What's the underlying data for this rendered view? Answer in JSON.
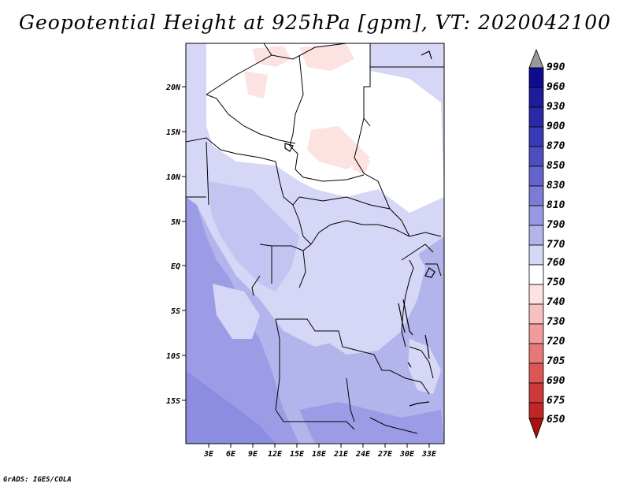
{
  "title": "Geopotential Height at 925hPa [gpm], VT: 2020042100",
  "credit": "GrADS: IGES/COLA",
  "axes": {
    "lat_labels": [
      "20N",
      "15N",
      "10N",
      "5N",
      "EQ",
      "5S",
      "10S",
      "15S"
    ],
    "lon_labels": [
      "3E",
      "6E",
      "9E",
      "12E",
      "15E",
      "18E",
      "21E",
      "24E",
      "27E",
      "30E",
      "33E"
    ]
  },
  "colorbar": {
    "labels": [
      "990",
      "960",
      "930",
      "900",
      "870",
      "850",
      "830",
      "810",
      "790",
      "770",
      "760",
      "750",
      "740",
      "730",
      "720",
      "705",
      "690",
      "675",
      "650"
    ],
    "colors": [
      "#0c0c8c",
      "#1d1d9c",
      "#2a2aa8",
      "#3a3ab4",
      "#4e4ec0",
      "#6464cc",
      "#7c7cd8",
      "#9898e2",
      "#b4b4ec",
      "#d6d6f6",
      "#ffffff",
      "#fde2e2",
      "#f8c0c0",
      "#f09c9c",
      "#e67878",
      "#dc5656",
      "#ce3a3a",
      "#c02626",
      "#a81010"
    ]
  },
  "map_fill_colors": {
    "white": "#ffffff",
    "pink": "#fde2e2",
    "pale_blue": "#d6d6f6",
    "light_blue": "#c4c4f2",
    "mid_blue": "#b4b4ec",
    "deep_blue": "#9c9ce6",
    "deeper_blue": "#8c8ce0"
  }
}
